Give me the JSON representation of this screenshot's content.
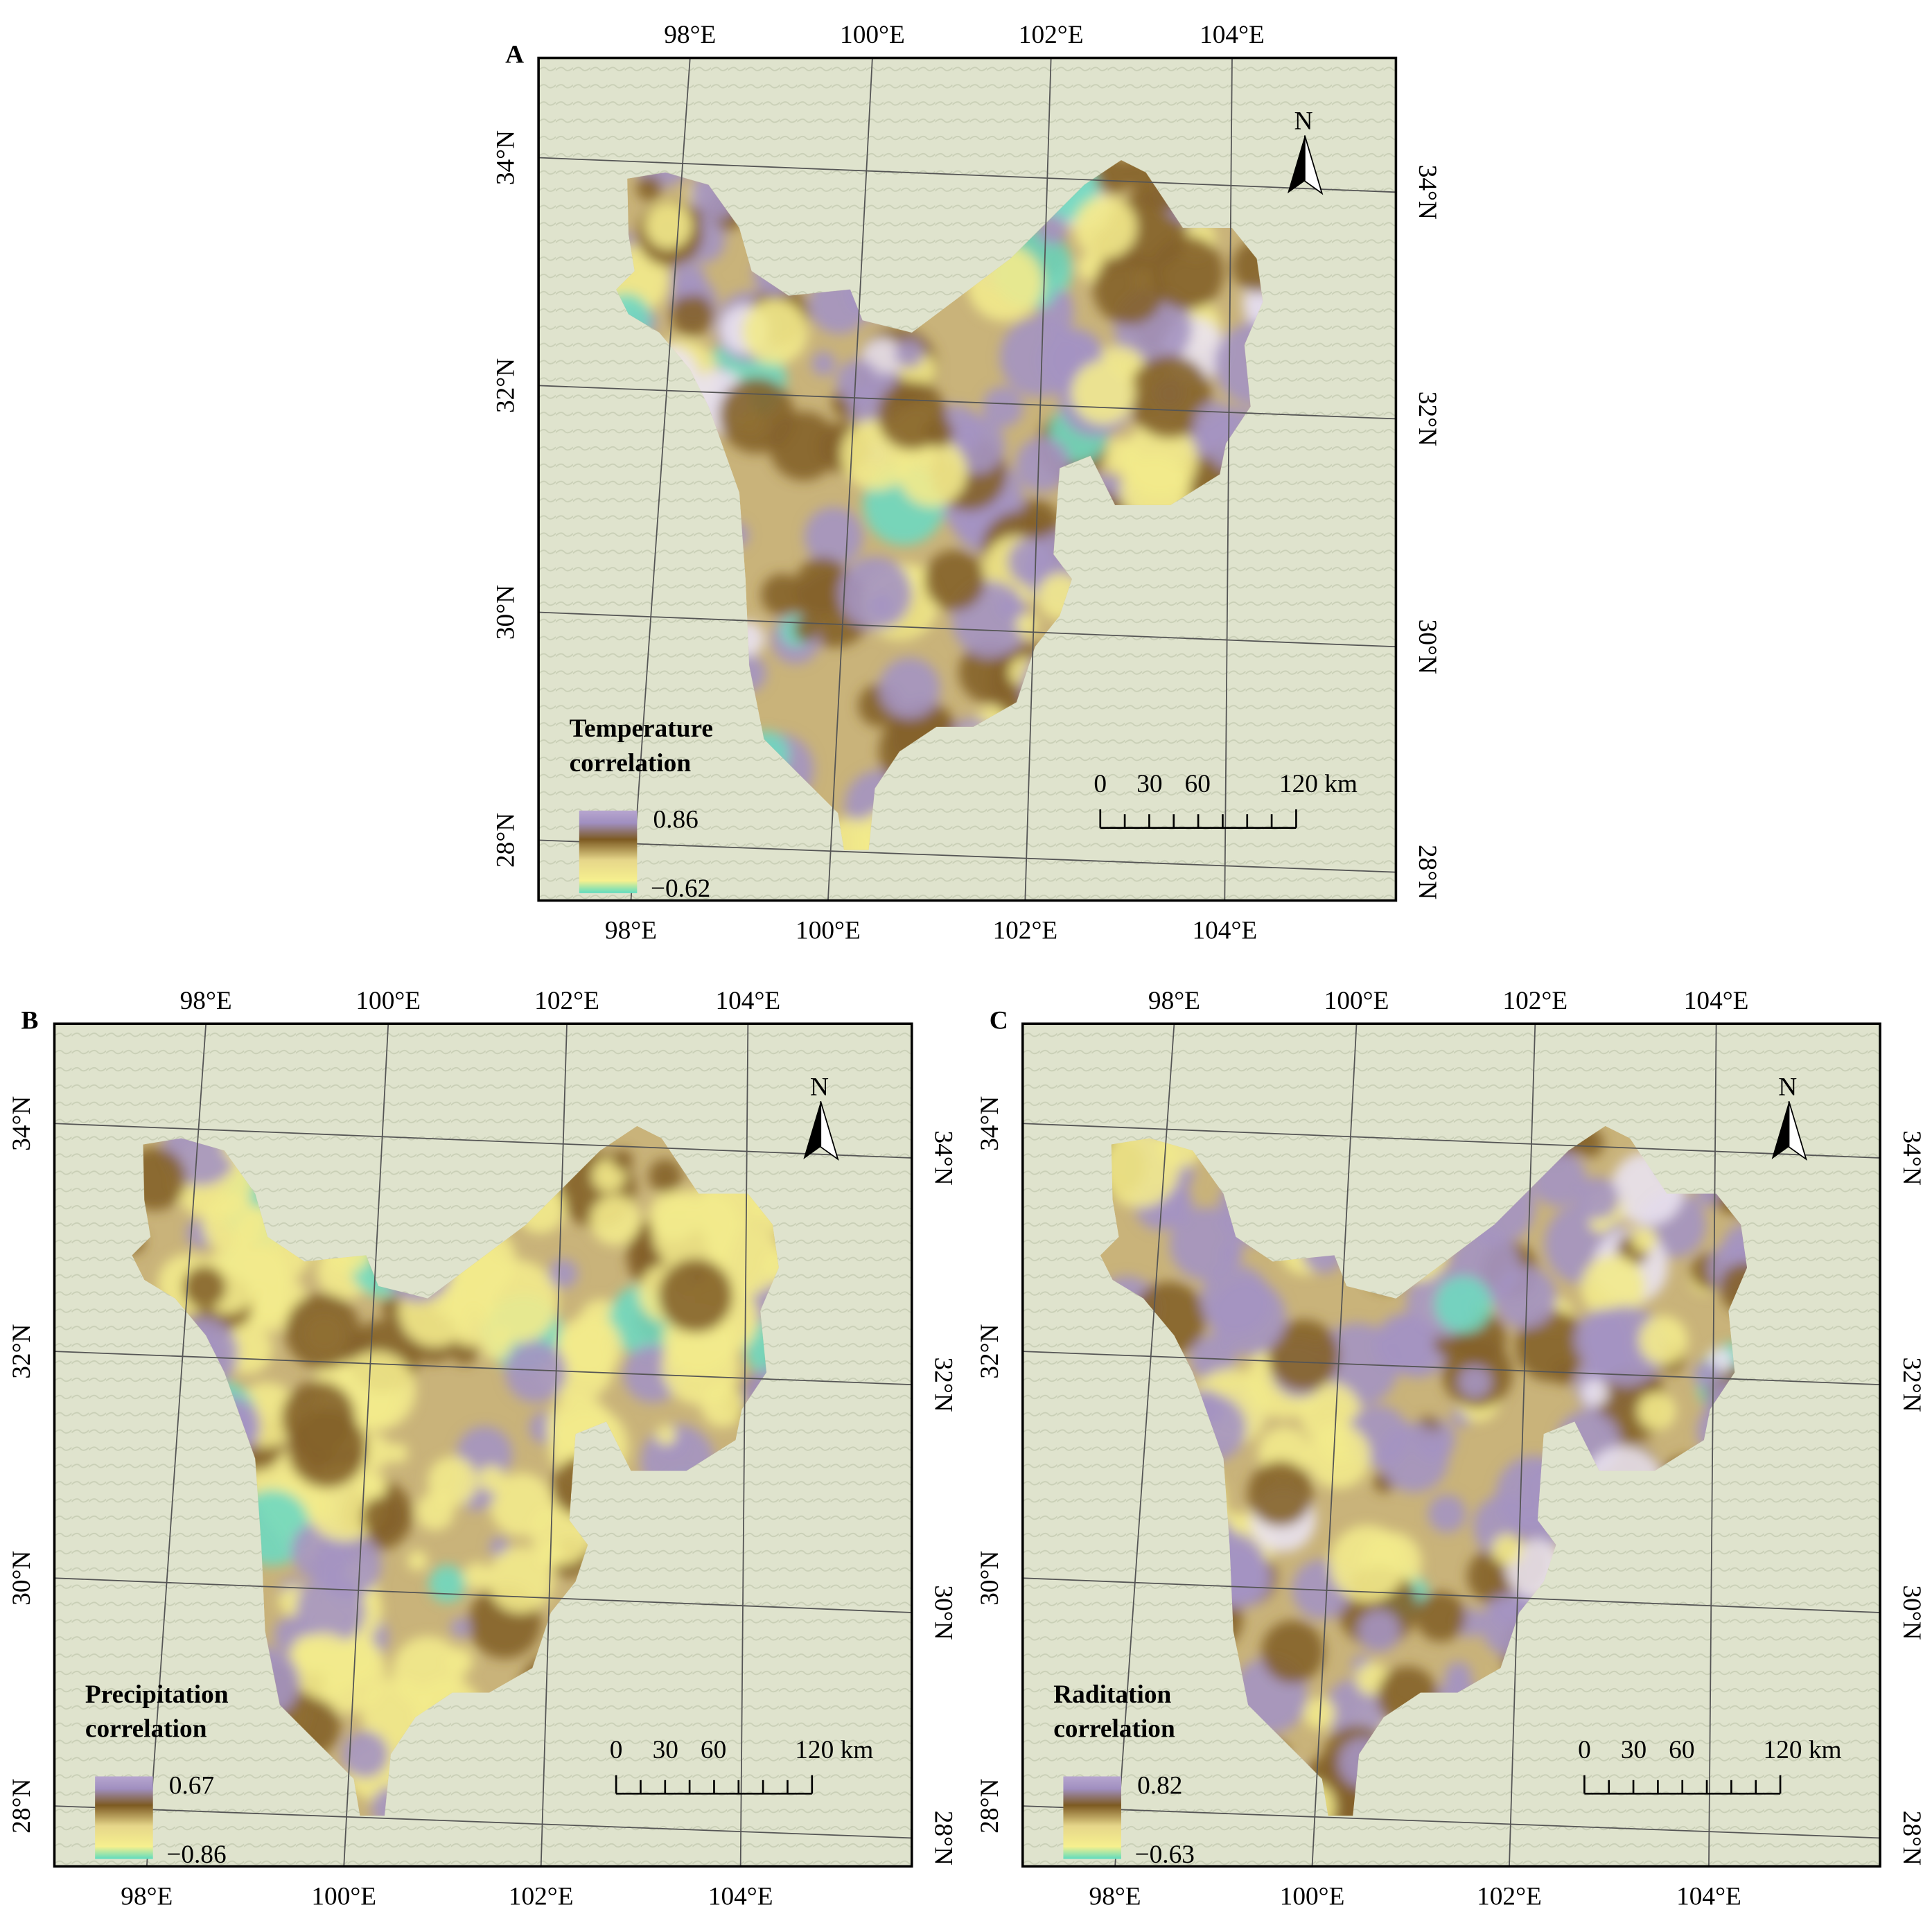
{
  "graticule": {
    "longitudes": [
      "98°E",
      "100°E",
      "102°E",
      "104°E"
    ],
    "latitudes": [
      "34°N",
      "32°N",
      "30°N",
      "28°N"
    ]
  },
  "scale_bar": [
    "0",
    "30",
    "60",
    "120 km"
  ],
  "north": "N",
  "panels": [
    {
      "label": "A",
      "legend_title": [
        "Temperature",
        "correlation"
      ],
      "legend_max": "0.86",
      "legend_min": "−0.62"
    },
    {
      "label": "B",
      "legend_title": [
        "Precipitation",
        "correlation"
      ],
      "legend_max": "0.67",
      "legend_min": "−0.86"
    },
    {
      "label": "C",
      "legend_title": [
        "Raditation",
        "correlation"
      ],
      "legend_max": "0.82",
      "legend_min": "−0.63"
    }
  ]
}
